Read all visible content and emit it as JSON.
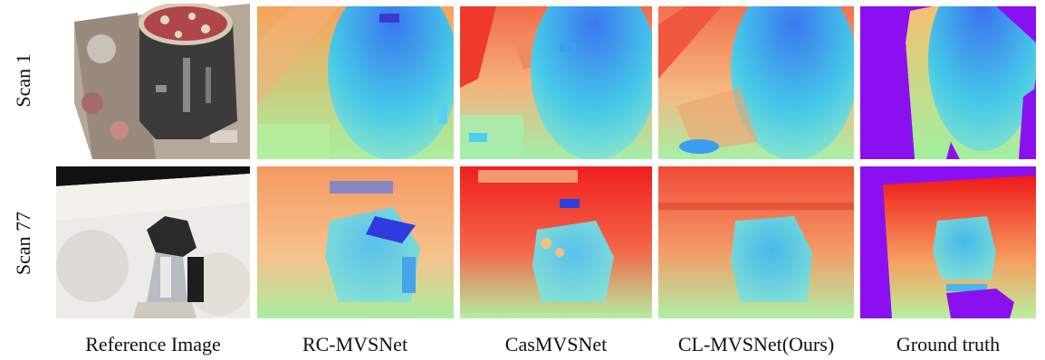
{
  "rows": [
    {
      "label": "Scan 1"
    },
    {
      "label": "Scan 77"
    }
  ],
  "columns": [
    {
      "label": "Reference Image"
    },
    {
      "label": "RC-MVSNet"
    },
    {
      "label": "CasMVSNet"
    },
    {
      "label": "CL-MVSNet(Ours)"
    },
    {
      "label": "Ground truth"
    }
  ]
}
